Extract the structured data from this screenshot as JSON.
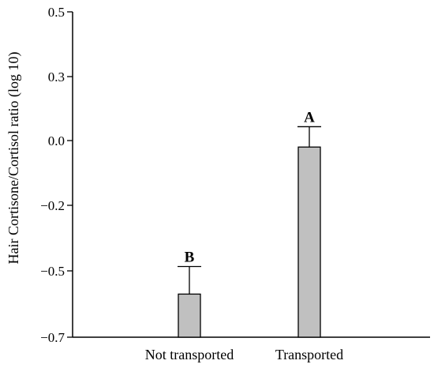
{
  "chart_data": {
    "type": "bar",
    "title": "",
    "xlabel": "",
    "ylabel": "Hair Cortisone/Cortisol ratio (log 10)",
    "categories": [
      "Not transported",
      "Transported"
    ],
    "values": [
      -0.57,
      -0.02
    ],
    "error_upper": [
      -0.48,
      0.065
    ],
    "significance_letters": [
      "B",
      "A"
    ],
    "y_ticks": [
      0.5,
      0.3,
      0.0,
      -0.2,
      -0.5,
      -0.7
    ],
    "y_tick_labels": [
      "0.5",
      "0.3",
      "0.0",
      "−0.2",
      "−0.5",
      "−0.7"
    ],
    "ylim": [
      -0.7,
      0.5
    ],
    "grid": false,
    "bar_color": "#c0c0c0",
    "bar_edge_color": "#000000"
  }
}
